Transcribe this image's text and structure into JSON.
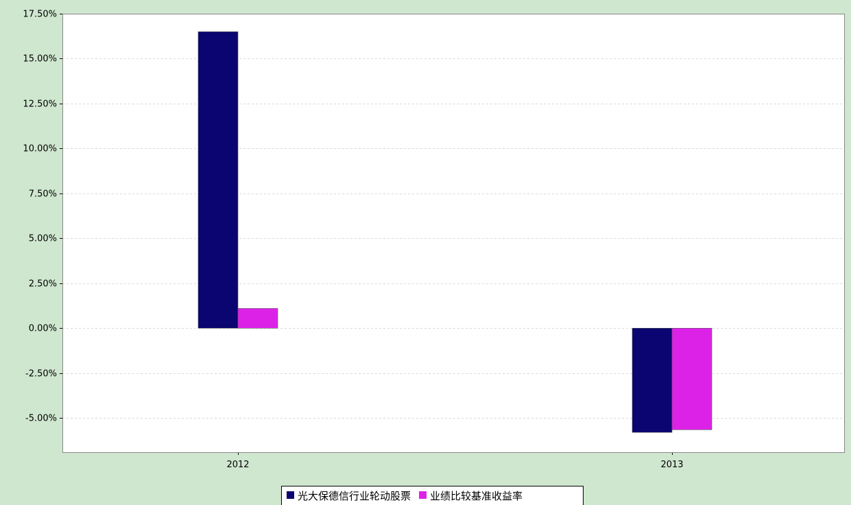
{
  "chart_data": {
    "type": "bar",
    "categories": [
      "2012",
      "2013"
    ],
    "series": [
      {
        "name": "光大保德信行业轮动股票",
        "color": "#0a0570",
        "values": [
          16.5,
          -5.8
        ]
      },
      {
        "name": "业绩比较基准收益率",
        "color": "#dd22e8",
        "values": [
          1.1,
          -5.65
        ]
      }
    ],
    "ylim": [
      -6.9,
      17.5
    ],
    "yticks": [
      17.5,
      15.0,
      12.5,
      10.0,
      7.5,
      5.0,
      2.5,
      0.0,
      -2.5,
      -5.0
    ],
    "ytick_labels": [
      "17.50%",
      "15.00%",
      "12.50%",
      "10.00%",
      "7.50%",
      "5.00%",
      "2.50%",
      "0.00%",
      "-2.50%",
      "-5.00%"
    ],
    "grid": true,
    "legend_position": "bottom-center",
    "title": "",
    "xlabel": "",
    "ylabel": ""
  },
  "colors": {
    "background": "#cfe6cf",
    "plot_background": "#ffffff",
    "gridline": "#d9d9d9"
  }
}
